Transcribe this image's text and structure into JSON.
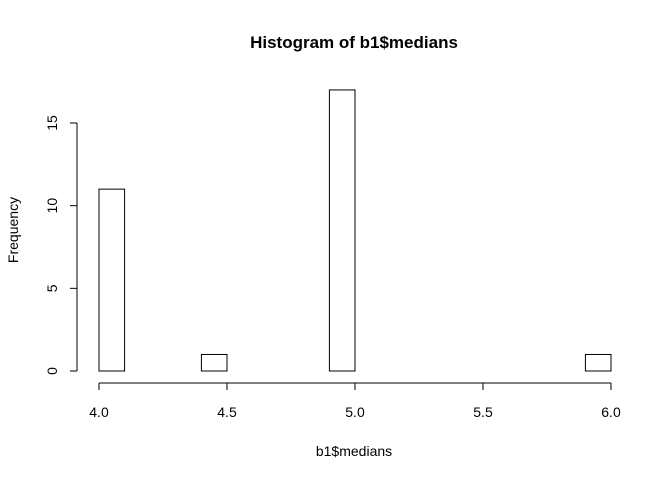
{
  "chart_data": {
    "type": "bar",
    "title": "Histogram of b1$medians",
    "xlabel": "b1$medians",
    "ylabel": "Frequency",
    "bin_edges": [
      4.0,
      4.1,
      4.2,
      4.3,
      4.4,
      4.5,
      4.6,
      4.7,
      4.8,
      4.9,
      5.0,
      5.1,
      5.2,
      5.3,
      5.4,
      5.5,
      5.6,
      5.7,
      5.8,
      5.9,
      6.0
    ],
    "values": [
      11,
      0,
      0,
      0,
      1,
      0,
      0,
      0,
      0,
      17,
      0,
      0,
      0,
      0,
      0,
      0,
      0,
      0,
      0,
      1
    ],
    "xlim": [
      4.0,
      6.0
    ],
    "ylim": [
      0,
      17
    ],
    "x_ticks": [
      4.0,
      4.5,
      5.0,
      5.5,
      6.0
    ],
    "x_tick_labels": [
      "4.0",
      "4.5",
      "5.0",
      "5.5",
      "6.0"
    ],
    "y_ticks": [
      0,
      5,
      10,
      15
    ],
    "y_tick_labels": [
      "0",
      "5",
      "10",
      "15"
    ],
    "grid": false,
    "legend": "none"
  }
}
